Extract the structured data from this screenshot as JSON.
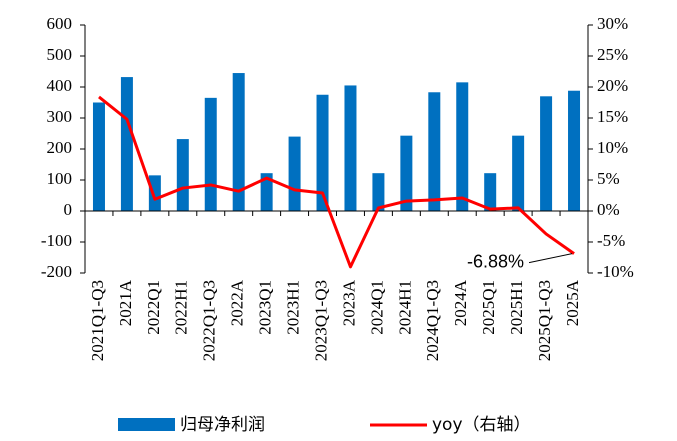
{
  "chart_data": {
    "type": "bar_line",
    "categories": [
      "2021Q1-Q3",
      "2021A",
      "2022Q1",
      "2022H1",
      "2022Q1-Q3",
      "2022A",
      "2023Q1",
      "2023H1",
      "2023Q1-Q3",
      "2023A",
      "2024Q1",
      "2024H1",
      "2024Q1-Q3",
      "2024A",
      "2025Q1",
      "2025H1",
      "2025Q1-Q3",
      "2025A"
    ],
    "series": [
      {
        "name": "归母净利润",
        "color": "#0070c0",
        "type": "bar",
        "values": [
          350,
          432,
          115,
          232,
          365,
          445,
          122,
          240,
          375,
          405,
          122,
          243,
          383,
          415,
          122,
          243,
          370,
          388
        ]
      },
      {
        "name": "yoy（右轴）",
        "color": "#ff0000",
        "type": "line",
        "axis": "y2",
        "values": [
          18.4,
          14.8,
          1.9,
          3.7,
          4.2,
          3.2,
          5.3,
          3.4,
          2.9,
          -9.0,
          0.5,
          1.6,
          1.8,
          2.1,
          0.3,
          0.5,
          -3.7,
          -6.88
        ],
        "value_labels": [
          null,
          null,
          null,
          null,
          null,
          null,
          null,
          null,
          null,
          null,
          null,
          null,
          null,
          null,
          null,
          null,
          null,
          "-6.88%"
        ]
      }
    ],
    "ylim": [
      -200,
      600
    ],
    "yticks": [
      -200,
      -100,
      0,
      100,
      200,
      300,
      400,
      500,
      600
    ],
    "y2lim": [
      -10,
      30
    ],
    "y2ticks": [
      {
        "value": -10,
        "label": "-10%"
      },
      {
        "value": -5,
        "label": "-5%"
      },
      {
        "value": 0,
        "label": "0%"
      },
      {
        "value": 5,
        "label": "5%"
      },
      {
        "value": 10,
        "label": "10%"
      },
      {
        "value": 15,
        "label": "15%"
      },
      {
        "value": 20,
        "label": "20%"
      },
      {
        "value": 25,
        "label": "25%"
      },
      {
        "value": 30,
        "label": "30%"
      }
    ],
    "grid": false,
    "legend": "bottom"
  }
}
